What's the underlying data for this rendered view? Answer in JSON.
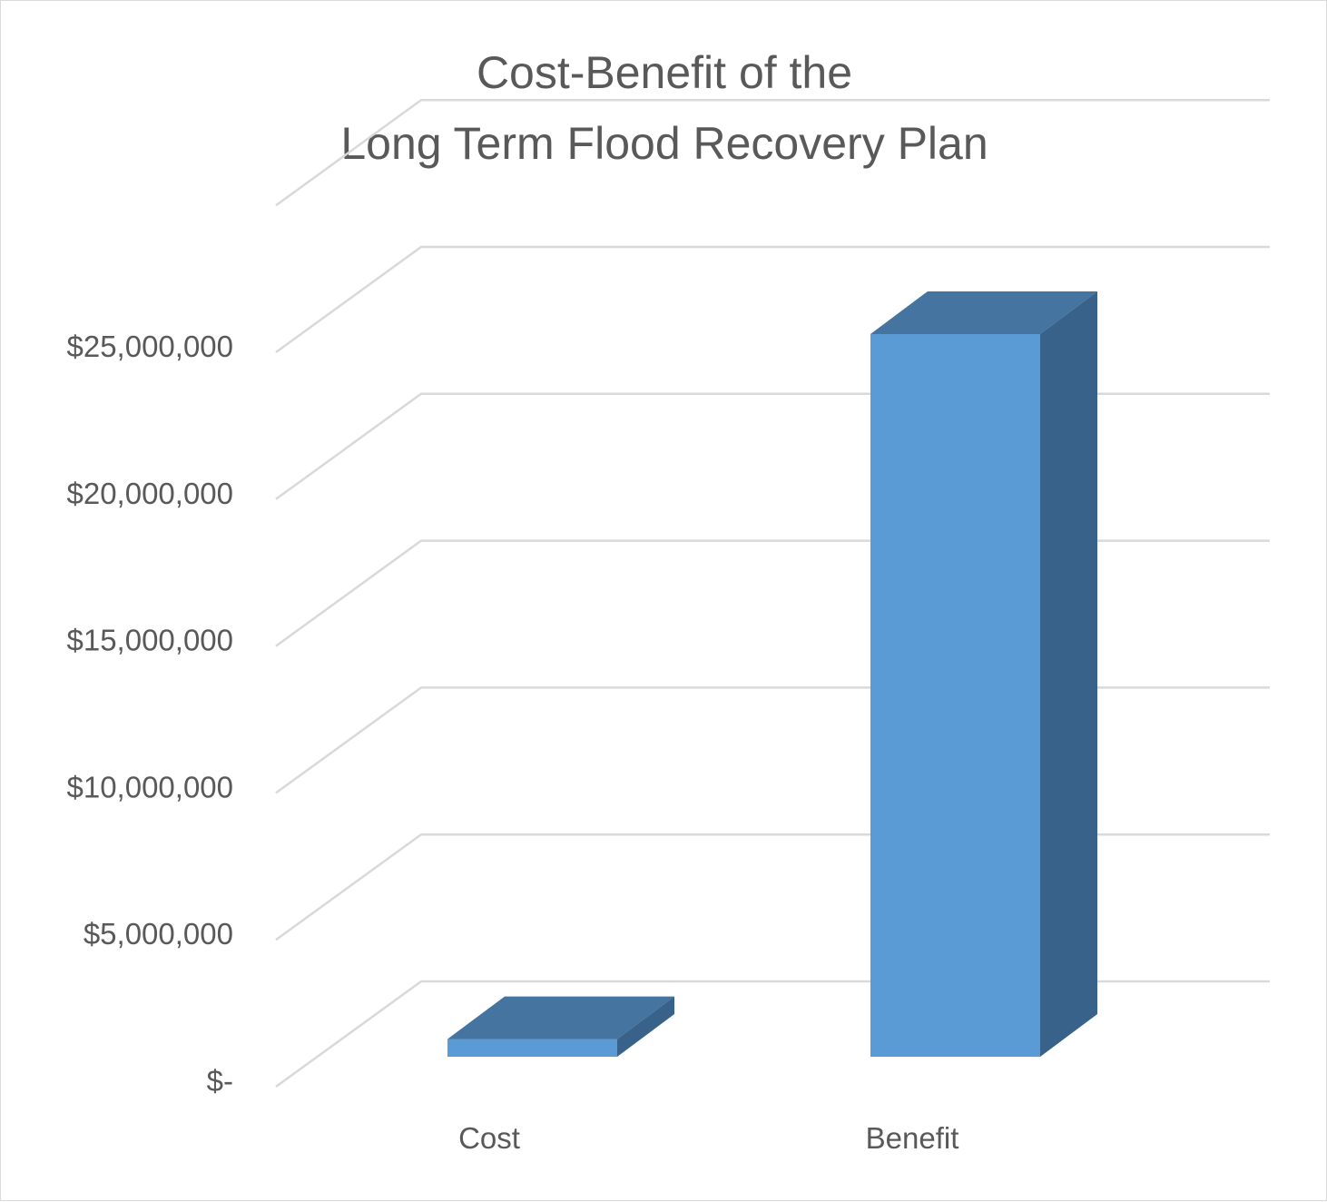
{
  "chart_data": {
    "type": "bar",
    "style": "3d-column",
    "title_lines": [
      "Cost-Benefit of the",
      "Long Term Flood Recovery Plan"
    ],
    "categories": [
      "Cost",
      "Benefit"
    ],
    "values": [
      600000,
      24600000
    ],
    "ylim": [
      0,
      30000000
    ],
    "y_ticks": [
      0,
      5000000,
      10000000,
      15000000,
      20000000,
      25000000
    ],
    "y_tick_labels": [
      "$-",
      "$5,000,000",
      "$10,000,000",
      "$15,000,000",
      "$20,000,000",
      "$25,000,000"
    ],
    "xlabel": "",
    "ylabel": "",
    "grid": true,
    "legend": "none",
    "colors": {
      "bar_front": "#5b9bd5",
      "bar_top": "#44749f",
      "bar_side": "#38628a",
      "grid": "#d9d9d9",
      "text": "#595959"
    }
  }
}
